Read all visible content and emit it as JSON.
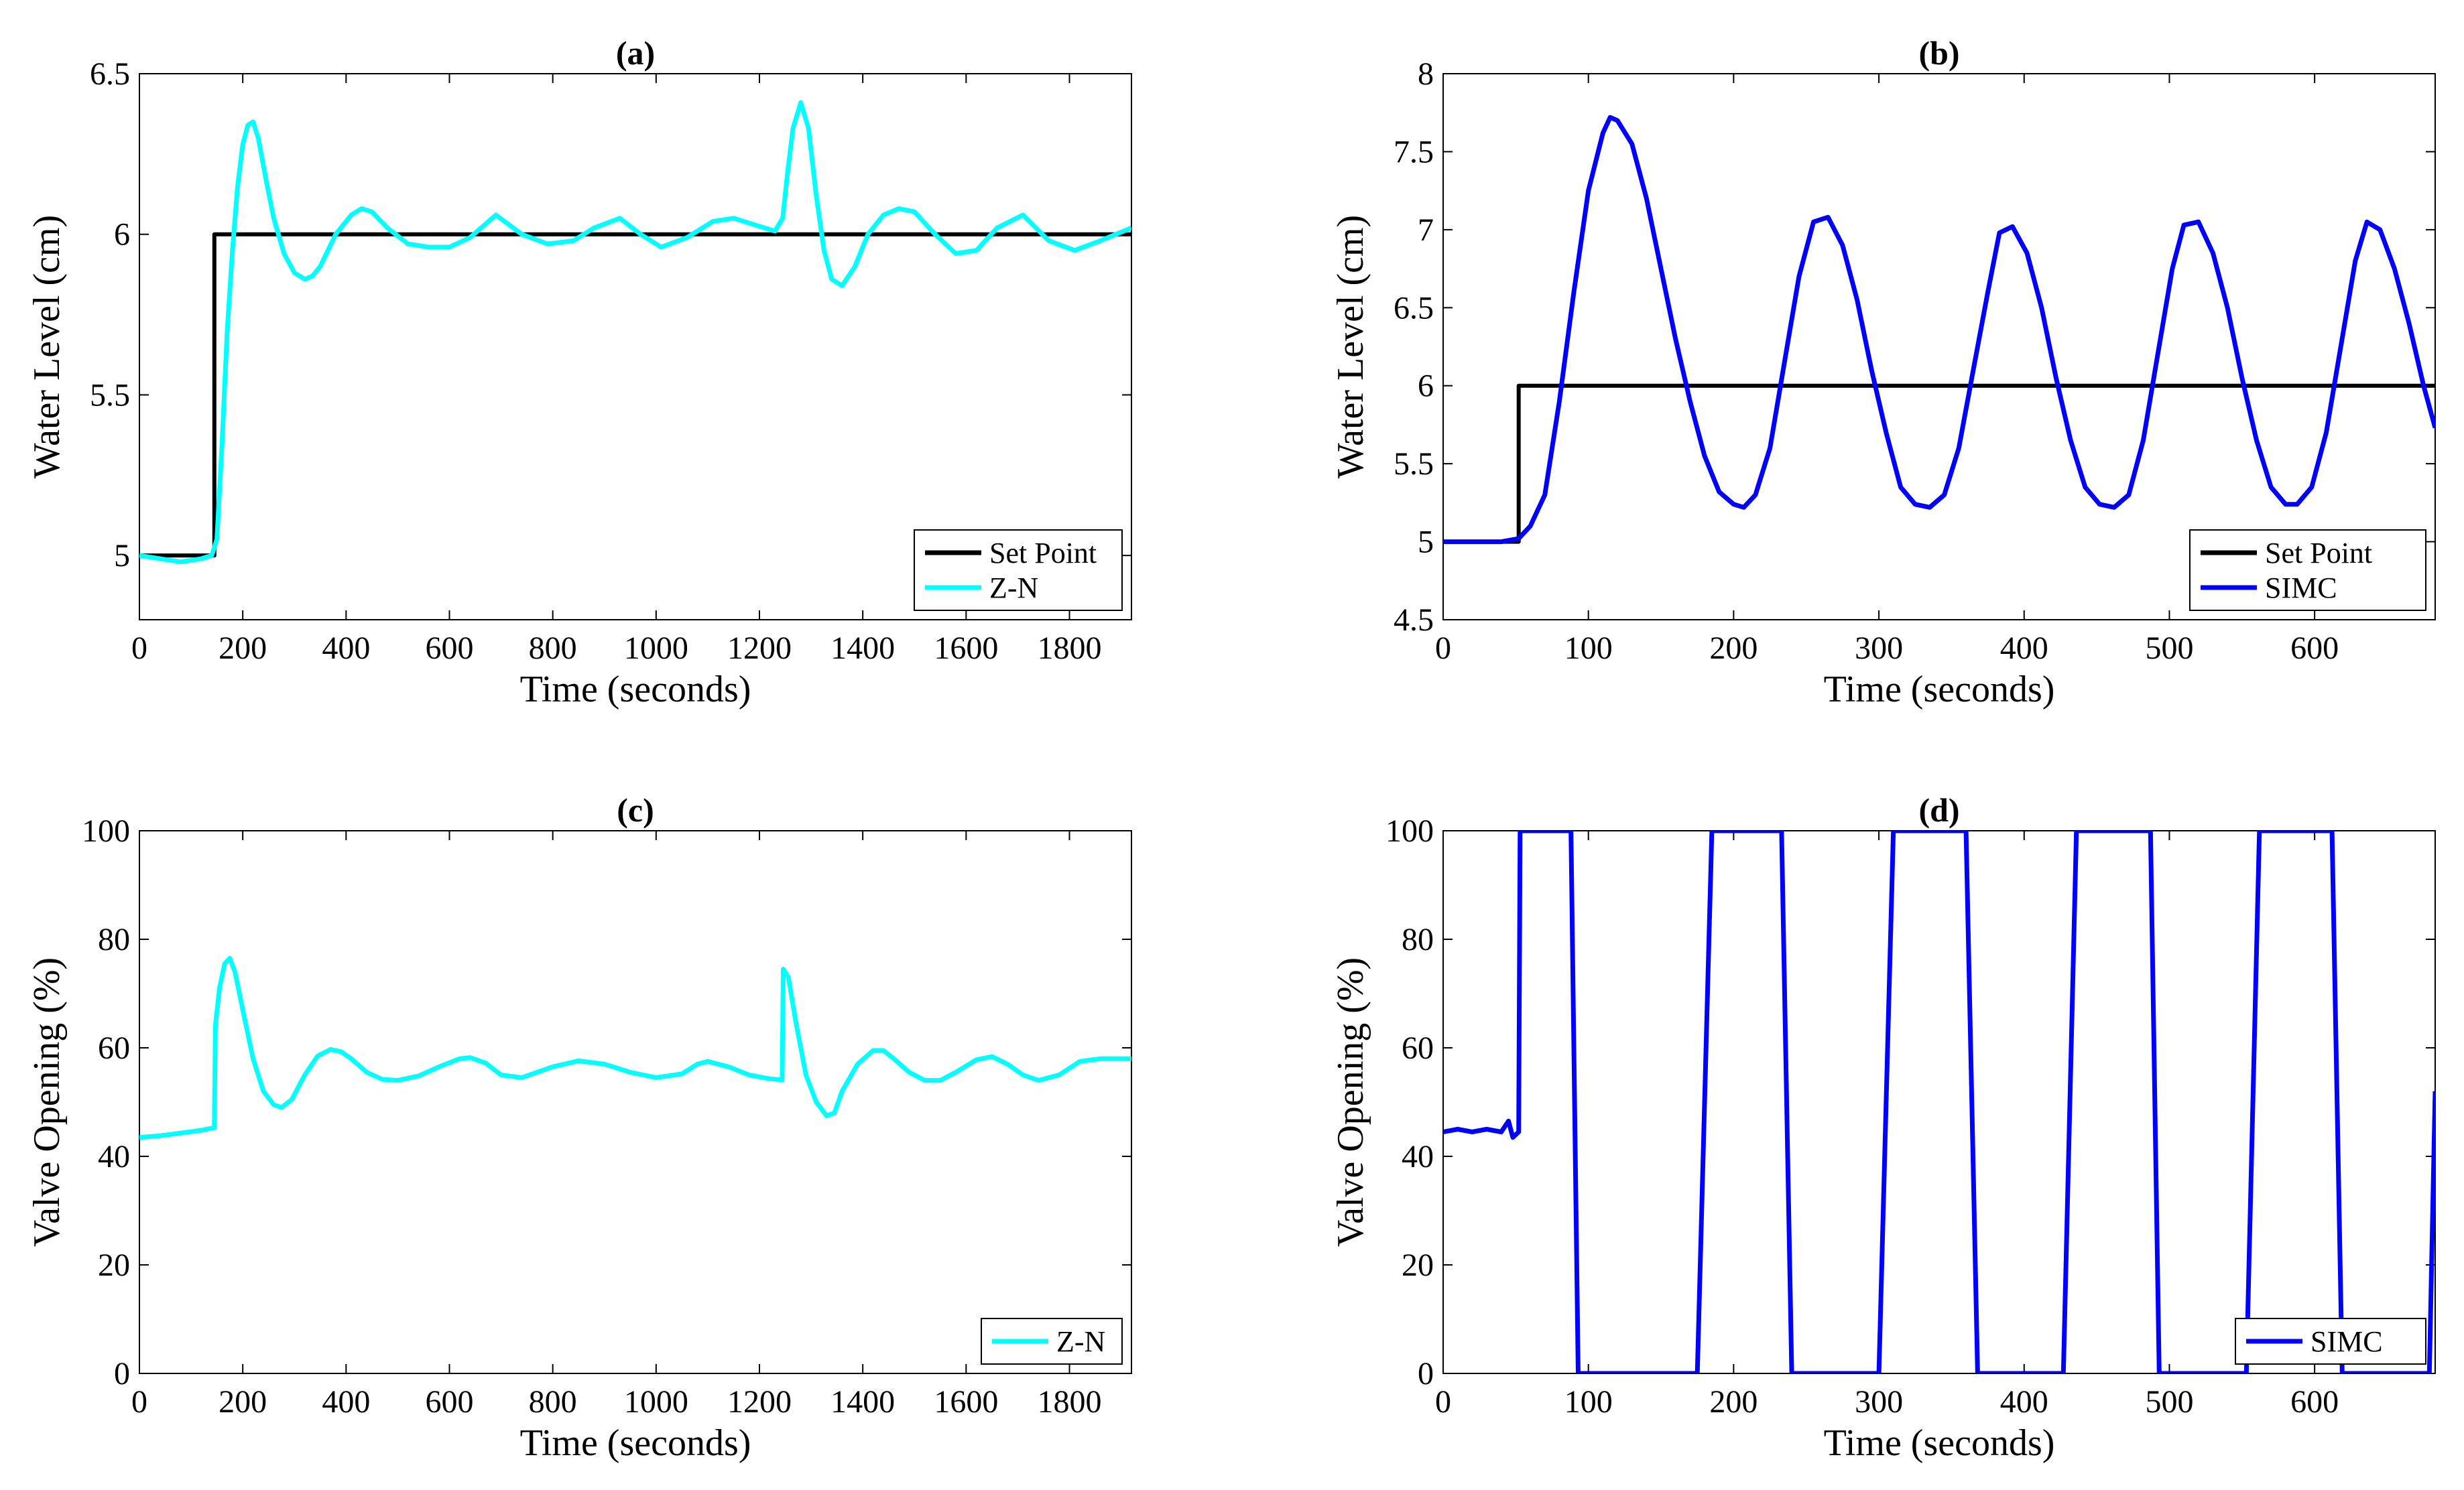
{
  "chart_data": [
    {
      "id": "a",
      "type": "line",
      "title": "(a)",
      "xlabel": "Time (seconds)",
      "ylabel": "Water Level (cm)",
      "xlim": [
        0,
        1920
      ],
      "ylim": [
        4.8,
        6.5
      ],
      "xticks": [
        0,
        200,
        400,
        600,
        800,
        1000,
        1200,
        1400,
        1600,
        1800
      ],
      "yticks": [
        5,
        5.5,
        6,
        6.5
      ],
      "ytick_labels": [
        "5",
        "5.5",
        "6",
        "6.5"
      ],
      "legend": "bottom-right",
      "series": [
        {
          "name": "Set Point",
          "color": "#000000",
          "x": [
            0,
            145,
            145,
            1920
          ],
          "y": [
            5,
            5,
            6,
            6
          ]
        },
        {
          "name": "Z-N",
          "color": "#00ffff",
          "x": [
            0,
            40,
            80,
            120,
            140,
            150,
            160,
            170,
            180,
            190,
            200,
            210,
            220,
            230,
            245,
            260,
            280,
            300,
            320,
            335,
            350,
            380,
            410,
            430,
            450,
            480,
            520,
            560,
            600,
            640,
            690,
            740,
            790,
            840,
            880,
            930,
            970,
            1010,
            1060,
            1110,
            1150,
            1190,
            1230,
            1245,
            1255,
            1265,
            1280,
            1295,
            1310,
            1325,
            1340,
            1360,
            1385,
            1410,
            1440,
            1470,
            1500,
            1540,
            1580,
            1620,
            1660,
            1710,
            1760,
            1810,
            1860,
            1920
          ],
          "y": [
            5.0,
            4.99,
            4.98,
            4.99,
            5.0,
            5.05,
            5.35,
            5.7,
            5.95,
            6.15,
            6.28,
            6.34,
            6.35,
            6.3,
            6.17,
            6.05,
            5.94,
            5.88,
            5.86,
            5.87,
            5.9,
            6.0,
            6.06,
            6.08,
            6.07,
            6.02,
            5.97,
            5.96,
            5.96,
            5.99,
            6.06,
            6.0,
            5.97,
            5.98,
            6.02,
            6.05,
            6.0,
            5.96,
            5.99,
            6.04,
            6.05,
            6.03,
            6.01,
            6.05,
            6.2,
            6.33,
            6.41,
            6.33,
            6.12,
            5.95,
            5.86,
            5.84,
            5.9,
            6.0,
            6.06,
            6.08,
            6.07,
            6.0,
            5.94,
            5.95,
            6.02,
            6.06,
            5.98,
            5.95,
            5.98,
            6.02
          ]
        }
      ]
    },
    {
      "id": "b",
      "type": "line",
      "title": "(b)",
      "xlabel": "Time (seconds)",
      "ylabel": "Water Level (cm)",
      "xlim": [
        0,
        683
      ],
      "ylim": [
        4.5,
        8
      ],
      "xticks": [
        0,
        100,
        200,
        300,
        400,
        500,
        600
      ],
      "yticks": [
        4.5,
        5,
        5.5,
        6,
        6.5,
        7,
        7.5,
        8
      ],
      "ytick_labels": [
        "4.5",
        "5",
        "5.5",
        "6",
        "6.5",
        "7",
        "7.5",
        "8"
      ],
      "legend": "bottom-right",
      "series": [
        {
          "name": "Set Point",
          "color": "#000000",
          "x": [
            0,
            52,
            52,
            683
          ],
          "y": [
            5,
            5,
            6,
            6
          ]
        },
        {
          "name": "SIMC",
          "color": "#0000ff",
          "x": [
            0,
            20,
            40,
            52,
            60,
            70,
            80,
            90,
            100,
            110,
            115,
            120,
            130,
            140,
            150,
            160,
            170,
            180,
            190,
            200,
            207,
            215,
            225,
            235,
            245,
            255,
            265,
            275,
            285,
            295,
            305,
            315,
            325,
            335,
            345,
            355,
            365,
            375,
            383,
            392,
            402,
            412,
            422,
            432,
            442,
            452,
            462,
            472,
            482,
            492,
            502,
            510,
            520,
            530,
            540,
            550,
            560,
            570,
            580,
            588,
            598,
            608,
            618,
            628,
            636,
            645,
            655,
            665,
            675,
            683
          ],
          "y": [
            5.0,
            5.0,
            5.0,
            5.02,
            5.1,
            5.3,
            5.9,
            6.6,
            7.25,
            7.62,
            7.72,
            7.7,
            7.55,
            7.2,
            6.75,
            6.3,
            5.9,
            5.55,
            5.32,
            5.24,
            5.22,
            5.3,
            5.6,
            6.15,
            6.7,
            7.05,
            7.08,
            6.9,
            6.55,
            6.1,
            5.7,
            5.35,
            5.24,
            5.22,
            5.3,
            5.6,
            6.1,
            6.6,
            6.98,
            7.02,
            6.85,
            6.5,
            6.05,
            5.65,
            5.35,
            5.24,
            5.22,
            5.3,
            5.65,
            6.2,
            6.75,
            7.03,
            7.05,
            6.85,
            6.5,
            6.05,
            5.65,
            5.35,
            5.24,
            5.24,
            5.35,
            5.7,
            6.25,
            6.8,
            7.05,
            7.0,
            6.75,
            6.4,
            6.0,
            5.73
          ]
        }
      ]
    },
    {
      "id": "c",
      "type": "line",
      "title": "(c)",
      "xlabel": "Time (seconds)",
      "ylabel": "Valve Opening (%)",
      "xlim": [
        0,
        1920
      ],
      "ylim": [
        0,
        100
      ],
      "xticks": [
        0,
        200,
        400,
        600,
        800,
        1000,
        1200,
        1400,
        1600,
        1800
      ],
      "yticks": [
        0,
        20,
        40,
        60,
        80,
        100
      ],
      "ytick_labels": [
        "0",
        "20",
        "40",
        "60",
        "80",
        "100"
      ],
      "legend": "bottom-right",
      "series": [
        {
          "name": "Z-N",
          "color": "#00ffff",
          "x": [
            0,
            40,
            80,
            120,
            145,
            147,
            155,
            165,
            175,
            185,
            200,
            220,
            240,
            260,
            275,
            295,
            320,
            345,
            370,
            390,
            410,
            440,
            470,
            500,
            540,
            580,
            620,
            640,
            670,
            700,
            740,
            800,
            850,
            900,
            950,
            1000,
            1050,
            1080,
            1100,
            1140,
            1180,
            1220,
            1244,
            1246,
            1256,
            1270,
            1290,
            1310,
            1330,
            1345,
            1360,
            1390,
            1420,
            1440,
            1460,
            1490,
            1520,
            1550,
            1580,
            1620,
            1650,
            1680,
            1710,
            1740,
            1780,
            1820,
            1860,
            1920
          ],
          "y": [
            43.5,
            43.8,
            44.3,
            44.8,
            45.3,
            64.0,
            71.0,
            75.5,
            76.5,
            74.0,
            67.0,
            58.0,
            52.0,
            49.5,
            49.0,
            50.5,
            55.0,
            58.5,
            59.7,
            59.3,
            58.0,
            55.5,
            54.2,
            54.0,
            54.8,
            56.5,
            58.0,
            58.2,
            57.2,
            55.0,
            54.5,
            56.5,
            57.6,
            57.0,
            55.5,
            54.5,
            55.2,
            57.0,
            57.5,
            56.5,
            55.0,
            54.3,
            54.1,
            74.5,
            73.0,
            65.0,
            55.0,
            50.0,
            47.5,
            48.0,
            52.0,
            57.0,
            59.5,
            59.5,
            58.0,
            55.5,
            54.0,
            54.0,
            55.5,
            57.8,
            58.4,
            57.0,
            55.0,
            54.0,
            55.0,
            57.5,
            58.0,
            58.0
          ]
        }
      ]
    },
    {
      "id": "d",
      "type": "line",
      "title": "(d)",
      "xlabel": "Time (seconds)",
      "ylabel": "Valve Opening (%)",
      "xlim": [
        0,
        683
      ],
      "ylim": [
        0,
        100
      ],
      "xticks": [
        0,
        100,
        200,
        300,
        400,
        500,
        600
      ],
      "yticks": [
        0,
        20,
        40,
        60,
        80,
        100
      ],
      "ytick_labels": [
        "0",
        "20",
        "40",
        "60",
        "80",
        "100"
      ],
      "legend": "bottom-right",
      "series": [
        {
          "name": "SIMC",
          "color": "#0000ff",
          "x": [
            0,
            10,
            20,
            30,
            40,
            45,
            48,
            52,
            53,
            55,
            88,
            93,
            175,
            185,
            233,
            240,
            300,
            310,
            360,
            368,
            427,
            436,
            487,
            493,
            553,
            562,
            612,
            619,
            679,
            683
          ],
          "y": [
            44.5,
            45.0,
            44.5,
            45.0,
            44.5,
            46.5,
            43.5,
            44.5,
            100,
            100,
            100,
            0,
            0,
            100,
            100,
            0,
            0,
            100,
            100,
            0,
            0,
            100,
            100,
            0,
            0,
            100,
            100,
            0,
            0,
            52
          ]
        }
      ]
    }
  ]
}
